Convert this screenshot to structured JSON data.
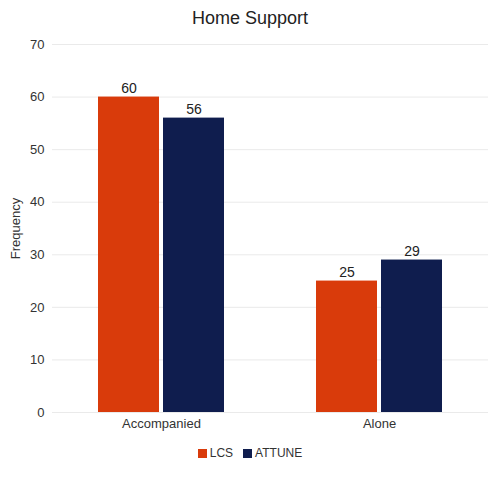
{
  "chart_data": {
    "type": "bar",
    "title": "Home Support",
    "y_label": "Frequency",
    "categories": [
      "Accompanied",
      "Alone"
    ],
    "series": [
      {
        "name": "LCS",
        "color": "#d93b0b",
        "values": [
          60,
          25
        ]
      },
      {
        "name": "ATTUNE",
        "color": "#0f1d4e",
        "values": [
          56,
          29
        ]
      }
    ],
    "ylim": [
      0,
      70
    ],
    "yticks": [
      0,
      10,
      20,
      30,
      40,
      50,
      60,
      70
    ],
    "grid": true,
    "data_labels": true,
    "legend": "bottom"
  }
}
